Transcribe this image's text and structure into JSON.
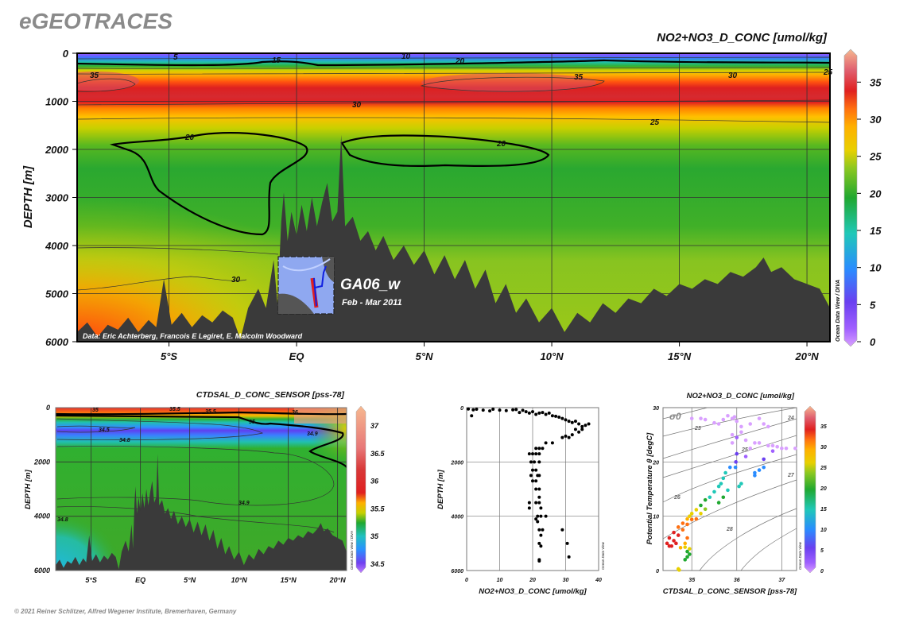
{
  "brand": "eGEOTRACES",
  "footer": "© 2021 Reiner Schlitzer, Alfred Wegener Institute, Bremerhaven, Germany",
  "odv_credit": "Ocean Data View / DIVA",
  "odv_credit_short": "Ocean Data View",
  "colors": {
    "bathymetry": "#3a3a3a",
    "grid": "#333333"
  },
  "chart_data": [
    {
      "type": "heatmap",
      "id": "main-section",
      "title": "NO2+NO3_D_CONC [umol/kg]",
      "ylabel": "DEPTH [m]",
      "xlabel": "",
      "ylim": [
        6000,
        0
      ],
      "xlim": [
        -8.6,
        20.9
      ],
      "yticks": [
        0,
        1000,
        2000,
        3000,
        4000,
        5000,
        6000
      ],
      "xticks": [
        -5,
        0,
        5,
        10,
        15,
        20
      ],
      "xticklabels": [
        "5°S",
        "EQ",
        "5°N",
        "10°N",
        "15°N",
        "20°N"
      ],
      "colorbar": {
        "range": [
          0,
          39
        ],
        "ticks": [
          0,
          5,
          10,
          15,
          20,
          25,
          30,
          35
        ]
      },
      "contour_labels": [
        "5",
        "10",
        "15",
        "20",
        "25",
        "35",
        "30",
        "30",
        "25",
        "20",
        "20",
        "30",
        "35"
      ],
      "data_credit": "Data: Eric Achterberg, Francois E Legiret, E. Malcolm Woodward",
      "cruise": "GA06_w",
      "period": "Feb - Mar 2011",
      "bathymetry": [
        [
          -8.6,
          5800
        ],
        [
          -8.2,
          5600
        ],
        [
          -7.8,
          5900
        ],
        [
          -7.4,
          5650
        ],
        [
          -7,
          5750
        ],
        [
          -6.6,
          5500
        ],
        [
          -6.2,
          5800
        ],
        [
          -5.8,
          5550
        ],
        [
          -5.5,
          5700
        ],
        [
          -5.2,
          4700
        ],
        [
          -4.9,
          5650
        ],
        [
          -4.5,
          5400
        ],
        [
          -4.1,
          5700
        ],
        [
          -3.7,
          5450
        ],
        [
          -3.3,
          5600
        ],
        [
          -2.9,
          5350
        ],
        [
          -2.5,
          5500
        ],
        [
          -2.2,
          5950
        ],
        [
          -1.9,
          5300
        ],
        [
          -1.5,
          4900
        ],
        [
          -1.2,
          5300
        ],
        [
          -0.9,
          4300
        ],
        [
          -0.75,
          5200
        ],
        [
          -0.6,
          3500
        ],
        [
          -0.5,
          2900
        ],
        [
          -0.35,
          3900
        ],
        [
          -0.2,
          3300
        ],
        [
          0,
          3800
        ],
        [
          0.2,
          3150
        ],
        [
          0.4,
          3700
        ],
        [
          0.6,
          3000
        ],
        [
          0.8,
          3600
        ],
        [
          1,
          3100
        ],
        [
          1.2,
          2700
        ],
        [
          1.4,
          3500
        ],
        [
          1.6,
          3300
        ],
        [
          1.75,
          1700
        ],
        [
          1.9,
          3600
        ],
        [
          2.2,
          3400
        ],
        [
          2.5,
          3900
        ],
        [
          2.8,
          3700
        ],
        [
          3.1,
          4100
        ],
        [
          3.4,
          3800
        ],
        [
          3.8,
          4300
        ],
        [
          4.2,
          4000
        ],
        [
          4.6,
          4400
        ],
        [
          5,
          4100
        ],
        [
          5.4,
          4600
        ],
        [
          5.8,
          4200
        ],
        [
          6.2,
          4700
        ],
        [
          6.6,
          4300
        ],
        [
          7,
          4900
        ],
        [
          7.4,
          4500
        ],
        [
          7.8,
          5200
        ],
        [
          8.2,
          4800
        ],
        [
          8.6,
          5400
        ],
        [
          9,
          5100
        ],
        [
          9.5,
          5600
        ],
        [
          10,
          5300
        ],
        [
          10.5,
          5800
        ],
        [
          11,
          5400
        ],
        [
          11.5,
          5600
        ],
        [
          12,
          5200
        ],
        [
          12.5,
          5400
        ],
        [
          13,
          5100
        ],
        [
          13.5,
          5200
        ],
        [
          14,
          4900
        ],
        [
          14.5,
          5050
        ],
        [
          15,
          4800
        ],
        [
          15.5,
          4900
        ],
        [
          16,
          4700
        ],
        [
          16.5,
          4800
        ],
        [
          17,
          4550
        ],
        [
          17.5,
          4650
        ],
        [
          18,
          4450
        ],
        [
          18.3,
          4250
        ],
        [
          18.6,
          4550
        ],
        [
          19,
          4450
        ],
        [
          19.5,
          4700
        ],
        [
          20,
          4800
        ],
        [
          20.5,
          4900
        ],
        [
          20.9,
          5300
        ]
      ]
    },
    {
      "type": "heatmap",
      "id": "salinity-section",
      "title": "CTDSAL_D_CONC_SENSOR [pss-78]",
      "ylabel": "DEPTH [m]",
      "ylim": [
        6000,
        0
      ],
      "xlim": [
        -8.6,
        20.9
      ],
      "yticks": [
        0,
        2000,
        4000,
        6000
      ],
      "xticks": [
        -5,
        0,
        5,
        10,
        15,
        20
      ],
      "xticklabels": [
        "5°S",
        "EQ",
        "5°N",
        "10°N",
        "15°N",
        "20°N"
      ],
      "colorbar": {
        "range": [
          34.4,
          37.3
        ],
        "ticks": [
          34.5,
          35,
          35.5,
          36,
          36.5,
          37
        ]
      },
      "contour_labels": [
        "35",
        "35.5",
        "35.5",
        "36",
        "35",
        "34.5",
        "34.8",
        "34.9",
        "34.9",
        "34.8"
      ]
    },
    {
      "type": "scatter",
      "id": "nitrate-profile",
      "xlabel": "NO2+NO3_D_CONC [umol/kg]",
      "ylabel": "DEPTH [m]",
      "xlim": [
        0,
        40
      ],
      "ylim": [
        6000,
        0
      ],
      "xticks": [
        0,
        10,
        20,
        30,
        40
      ],
      "yticks": [
        0,
        2000,
        4000,
        6000
      ],
      "points": [
        [
          0.5,
          50
        ],
        [
          1.5,
          300
        ],
        [
          2,
          80
        ],
        [
          3,
          60
        ],
        [
          5,
          90
        ],
        [
          7,
          120
        ],
        [
          8,
          60
        ],
        [
          10,
          90
        ],
        [
          12,
          110
        ],
        [
          14,
          80
        ],
        [
          15,
          70
        ],
        [
          16,
          180
        ],
        [
          17,
          100
        ],
        [
          18,
          150
        ],
        [
          19,
          200
        ],
        [
          20,
          150
        ],
        [
          21,
          250
        ],
        [
          22,
          200
        ],
        [
          23,
          180
        ],
        [
          24,
          250
        ],
        [
          25,
          200
        ],
        [
          26,
          300
        ],
        [
          27,
          320
        ],
        [
          28,
          350
        ],
        [
          29,
          400
        ],
        [
          30,
          450
        ],
        [
          31,
          500
        ],
        [
          32,
          550
        ],
        [
          33,
          500
        ],
        [
          34,
          600
        ],
        [
          35,
          700
        ],
        [
          36,
          650
        ],
        [
          37,
          600
        ],
        [
          33,
          800
        ],
        [
          34,
          900
        ],
        [
          32,
          1000
        ],
        [
          35,
          800
        ],
        [
          29,
          1100
        ],
        [
          30,
          1050
        ],
        [
          31,
          1100
        ],
        [
          24,
          1300
        ],
        [
          26,
          1300
        ],
        [
          21,
          1500
        ],
        [
          22,
          1500
        ],
        [
          23,
          1500
        ],
        [
          19,
          1700
        ],
        [
          20,
          1700
        ],
        [
          21,
          1700
        ],
        [
          22,
          1700
        ],
        [
          19.5,
          2000
        ],
        [
          20.5,
          2000
        ],
        [
          22,
          2000
        ],
        [
          20,
          2300
        ],
        [
          21,
          2300
        ],
        [
          19.5,
          2500
        ],
        [
          21.5,
          2500
        ],
        [
          22,
          2500
        ],
        [
          20,
          2700
        ],
        [
          21,
          2700
        ],
        [
          21,
          3000
        ],
        [
          22,
          3000
        ],
        [
          22,
          3300
        ],
        [
          19,
          3500
        ],
        [
          21,
          3500
        ],
        [
          22,
          3500
        ],
        [
          19,
          3700
        ],
        [
          22.5,
          3700
        ],
        [
          21.5,
          4000
        ],
        [
          22.5,
          4000
        ],
        [
          24,
          4000
        ],
        [
          21,
          4100
        ],
        [
          21.5,
          4200
        ],
        [
          22,
          4500
        ],
        [
          23,
          4500
        ],
        [
          29,
          4500
        ],
        [
          22.5,
          4700
        ],
        [
          22,
          5000
        ],
        [
          30.5,
          5000
        ],
        [
          22.5,
          5100
        ],
        [
          31,
          5500
        ],
        [
          22,
          5600
        ],
        [
          22,
          5650
        ]
      ]
    },
    {
      "type": "scatter",
      "id": "ts-diagram",
      "title": "NO2+NO3_D_CONC [umol/kg]",
      "xlabel": "CTDSAL_D_CONC_SENSOR [pss-78]",
      "ylabel": "Potential Temperature θ [degC]",
      "xlim": [
        34.36,
        37.33
      ],
      "ylim": [
        0,
        30
      ],
      "xticks": [
        35,
        36,
        37
      ],
      "yticks": [
        0,
        10,
        20,
        30
      ],
      "sigma_label": "σ0",
      "isopycnal_labels": [
        "23",
        "24",
        "25",
        "26",
        "27",
        "28"
      ],
      "colorbar": {
        "range": [
          0,
          39
        ],
        "ticks": [
          0,
          5,
          10,
          15,
          20,
          25,
          30,
          35
        ]
      },
      "points": [
        [
          35.0,
          28,
          0.5
        ],
        [
          35.2,
          28,
          0.5
        ],
        [
          35.3,
          27.8,
          0.5
        ],
        [
          35.5,
          27.2,
          0.5
        ],
        [
          35.6,
          27,
          0.5
        ],
        [
          35.7,
          27.8,
          0.5
        ],
        [
          35.8,
          28.5,
          0.5
        ],
        [
          35.9,
          28,
          0.5
        ],
        [
          35.95,
          28.3,
          0.5
        ],
        [
          36.0,
          27.5,
          0.5
        ],
        [
          36.1,
          26.5,
          0.5
        ],
        [
          36.3,
          27,
          0.5
        ],
        [
          36.5,
          28,
          0.5
        ],
        [
          36.6,
          27,
          0.5
        ],
        [
          36.7,
          26.5,
          0.5
        ],
        [
          35.9,
          25,
          0.5
        ],
        [
          35.9,
          23.5,
          0.5
        ],
        [
          36.1,
          25.5,
          0.5
        ],
        [
          36.2,
          24,
          0.5
        ],
        [
          36.4,
          23.5,
          0.5
        ],
        [
          36.5,
          23.5,
          0.5
        ],
        [
          36.7,
          23,
          0.5
        ],
        [
          36.8,
          23,
          0.5
        ],
        [
          36.9,
          22.8,
          0.5
        ],
        [
          37.0,
          22.5,
          0.5
        ],
        [
          37.1,
          22.5,
          0.5
        ],
        [
          37.3,
          22.5,
          0.5
        ],
        [
          36.3,
          22.5,
          1
        ],
        [
          36.8,
          22,
          3
        ],
        [
          36.0,
          24.5,
          5
        ],
        [
          36.0,
          21.5,
          6
        ],
        [
          36.2,
          21,
          5
        ],
        [
          35.98,
          20,
          8
        ],
        [
          35.97,
          19,
          10
        ],
        [
          36.6,
          20.5,
          9
        ],
        [
          36.6,
          19,
          10
        ],
        [
          36.5,
          18.5,
          11
        ],
        [
          36.4,
          18,
          12
        ],
        [
          36.4,
          17.5,
          12
        ],
        [
          35.85,
          19,
          14
        ],
        [
          35.75,
          18,
          15
        ],
        [
          35.7,
          17,
          15
        ],
        [
          35.65,
          16,
          15
        ],
        [
          35.6,
          15.5,
          16
        ],
        [
          36.1,
          16,
          16
        ],
        [
          36.05,
          15.5,
          16
        ],
        [
          35.5,
          14.5,
          17
        ],
        [
          35.8,
          14.8,
          18
        ],
        [
          35.4,
          13.5,
          19
        ],
        [
          35.3,
          13,
          20
        ],
        [
          35.7,
          13.5,
          20
        ],
        [
          35.2,
          12,
          22
        ],
        [
          35.6,
          12.5,
          22
        ],
        [
          35.3,
          11.3,
          23
        ],
        [
          35.1,
          11.2,
          26
        ],
        [
          35.0,
          10.5,
          27
        ],
        [
          35.2,
          10.5,
          27
        ],
        [
          34.95,
          10,
          28
        ],
        [
          34.9,
          9.5,
          30
        ],
        [
          35.0,
          9.4,
          31
        ],
        [
          35.1,
          9.5,
          32
        ],
        [
          34.8,
          8.7,
          31
        ],
        [
          34.9,
          8.5,
          32
        ],
        [
          34.7,
          8,
          33
        ],
        [
          34.8,
          7.5,
          33
        ],
        [
          34.6,
          7,
          34
        ],
        [
          34.7,
          6.5,
          34
        ],
        [
          34.5,
          6,
          35
        ],
        [
          34.6,
          5.5,
          35
        ],
        [
          34.45,
          5,
          35
        ],
        [
          34.55,
          4.5,
          35
        ],
        [
          34.65,
          5,
          34
        ],
        [
          34.5,
          4.5,
          35
        ],
        [
          34.75,
          4.2,
          29
        ],
        [
          34.85,
          5,
          30
        ],
        [
          34.9,
          6,
          31
        ],
        [
          34.85,
          4.3,
          27
        ],
        [
          34.95,
          4.0,
          26
        ],
        [
          34.9,
          3.5,
          21
        ],
        [
          34.95,
          3,
          20
        ],
        [
          34.9,
          2.5,
          20
        ],
        [
          34.85,
          2,
          20
        ],
        [
          34.7,
          0.3,
          28
        ],
        [
          34.72,
          0.1,
          28
        ]
      ]
    }
  ]
}
